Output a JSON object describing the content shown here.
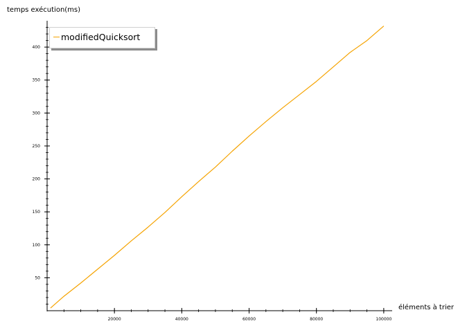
{
  "chart_data": {
    "type": "line",
    "ylabel": "temps exécution(ms)",
    "xlabel": "éléments à trier",
    "xlim": [
      0,
      102500
    ],
    "ylim": [
      0,
      440
    ],
    "x_ticks": [
      20000,
      40000,
      60000,
      80000,
      100000
    ],
    "y_ticks": [
      50,
      100,
      150,
      200,
      250,
      300,
      350,
      400
    ],
    "grid": false,
    "legend_position": "top-left",
    "series": [
      {
        "name": "modifiedQuicksort",
        "color": "#f5a300",
        "x": [
          1000,
          5000,
          10000,
          15000,
          20000,
          25000,
          30000,
          35000,
          40000,
          45000,
          50000,
          55000,
          60000,
          65000,
          70000,
          75000,
          80000,
          85000,
          90000,
          95000,
          100000
        ],
        "y": [
          4,
          22,
          42,
          63,
          84,
          106,
          127,
          149,
          173,
          196,
          218,
          242,
          265,
          287,
          308,
          328,
          348,
          370,
          392,
          410,
          432
        ]
      }
    ]
  },
  "legend": {
    "label": "modifiedQuicksort"
  }
}
